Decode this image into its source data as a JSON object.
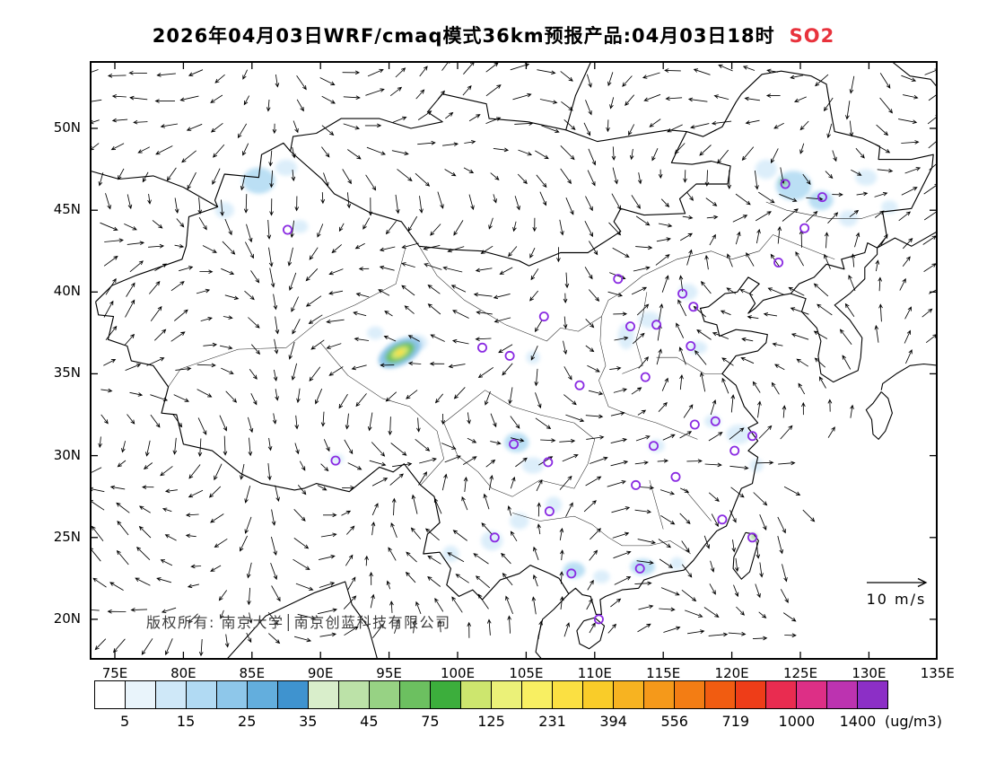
{
  "title": {
    "text": "2026年04月03日WRF/cmaq模式36km预报产品:04月03日18时",
    "pollutant": "SO2",
    "pollutant_color": "#e8323c"
  },
  "axes": {
    "lat": [
      {
        "label": "50N",
        "value": 50
      },
      {
        "label": "45N",
        "value": 45
      },
      {
        "label": "40N",
        "value": 40
      },
      {
        "label": "35N",
        "value": 35
      },
      {
        "label": "30N",
        "value": 30
      },
      {
        "label": "25N",
        "value": 25
      },
      {
        "label": "20N",
        "value": 20
      }
    ],
    "lon": [
      {
        "label": "75E",
        "value": 75
      },
      {
        "label": "80E",
        "value": 80
      },
      {
        "label": "85E",
        "value": 85
      },
      {
        "label": "90E",
        "value": 90
      },
      {
        "label": "95E",
        "value": 95
      },
      {
        "label": "100E",
        "value": 100
      },
      {
        "label": "105E",
        "value": 105
      },
      {
        "label": "110E",
        "value": 110
      },
      {
        "label": "115E",
        "value": 115
      },
      {
        "label": "120E",
        "value": 120
      },
      {
        "label": "125E",
        "value": 125
      },
      {
        "label": "130E",
        "value": 130
      },
      {
        "label": "135E",
        "value": 135
      }
    ]
  },
  "map": {
    "copyright": "版权所有: 南京大学│南京创蓝科技有限公司",
    "wind_scale_label": "10 m/s"
  },
  "colorbar": {
    "unit": "(ug/m3)",
    "labels": [
      "5",
      "15",
      "25",
      "35",
      "45",
      "75",
      "125",
      "231",
      "394",
      "556",
      "719",
      "1000",
      "1400"
    ],
    "colors": [
      "#ffffff",
      "#e9f4fb",
      "#cfe8f8",
      "#b1daf3",
      "#8ec7ea",
      "#63aedd",
      "#3f93cf",
      "#d9eecb",
      "#bce2a8",
      "#97d284",
      "#6cc060",
      "#3cae3c",
      "#cde66e",
      "#ebf178",
      "#f8ef62",
      "#fbe042",
      "#f9cc29",
      "#f7b321",
      "#f5991a",
      "#f37d14",
      "#f15c11",
      "#ee3d18",
      "#e92c50",
      "#dd2f86",
      "#bc33b0",
      "#8c2fc6"
    ]
  },
  "chart_data": {
    "type": "map",
    "wind_reference_mps": 10,
    "station_marker_color": "#8a2be2",
    "patch_colors": {
      "1": "#d8ecf9",
      "2": "#b4dbf3",
      "3": "#8cc4e8",
      "4": "#74c26a"
    },
    "stations_lonlat": [
      [
        87.6,
        43.8
      ],
      [
        123.9,
        46.6
      ],
      [
        126.6,
        45.8
      ],
      [
        125.3,
        43.9
      ],
      [
        123.4,
        41.8
      ],
      [
        111.7,
        40.8
      ],
      [
        116.4,
        39.9
      ],
      [
        117.2,
        39.1
      ],
      [
        114.5,
        38.0
      ],
      [
        112.6,
        37.9
      ],
      [
        117.0,
        36.7
      ],
      [
        113.7,
        34.8
      ],
      [
        108.9,
        34.3
      ],
      [
        106.3,
        38.5
      ],
      [
        103.8,
        36.1
      ],
      [
        101.8,
        36.6
      ],
      [
        117.3,
        31.9
      ],
      [
        118.8,
        32.1
      ],
      [
        121.5,
        31.2
      ],
      [
        120.2,
        30.3
      ],
      [
        114.3,
        30.6
      ],
      [
        104.1,
        30.7
      ],
      [
        106.6,
        29.6
      ],
      [
        91.1,
        29.7
      ],
      [
        113.0,
        28.2
      ],
      [
        115.9,
        28.7
      ],
      [
        106.7,
        26.6
      ],
      [
        102.7,
        25.0
      ],
      [
        119.3,
        26.1
      ],
      [
        121.5,
        25.0
      ],
      [
        113.3,
        23.1
      ],
      [
        108.3,
        22.8
      ],
      [
        110.3,
        20.0
      ]
    ],
    "so2_patches": [
      [
        85.5,
        46.8,
        1.2,
        0.8,
        2
      ],
      [
        87.5,
        47.6,
        0.8,
        0.5,
        1
      ],
      [
        83.0,
        45.0,
        0.7,
        0.5,
        1
      ],
      [
        88.5,
        44.0,
        0.6,
        0.4,
        1
      ],
      [
        124.5,
        46.5,
        1.3,
        0.9,
        2
      ],
      [
        126.5,
        45.6,
        0.9,
        0.6,
        2
      ],
      [
        122.5,
        47.5,
        0.8,
        0.6,
        1
      ],
      [
        128.5,
        44.5,
        0.7,
        0.5,
        1
      ],
      [
        129.8,
        47.0,
        0.8,
        0.5,
        1
      ],
      [
        131.5,
        45.2,
        0.6,
        0.4,
        1
      ],
      [
        116.8,
        40.0,
        0.7,
        0.5,
        1
      ],
      [
        114.0,
        38.3,
        0.8,
        0.5,
        1
      ],
      [
        112.3,
        37.3,
        0.6,
        0.8,
        1
      ],
      [
        117.5,
        36.6,
        0.7,
        0.4,
        1
      ],
      [
        105.5,
        36.0,
        0.5,
        0.4,
        1
      ],
      [
        104.3,
        30.8,
        0.9,
        0.6,
        2
      ],
      [
        105.5,
        29.4,
        0.8,
        0.5,
        1
      ],
      [
        107.0,
        27.0,
        0.6,
        0.5,
        1
      ],
      [
        104.5,
        26.0,
        0.7,
        0.5,
        1
      ],
      [
        102.5,
        24.8,
        0.8,
        0.6,
        1
      ],
      [
        99.5,
        24.0,
        0.6,
        0.5,
        1
      ],
      [
        108.5,
        23.0,
        0.8,
        0.5,
        2
      ],
      [
        110.5,
        22.6,
        0.6,
        0.4,
        1
      ],
      [
        113.5,
        23.2,
        0.9,
        0.5,
        2
      ],
      [
        116.0,
        23.4,
        0.5,
        0.4,
        1
      ],
      [
        120.5,
        31.3,
        0.9,
        0.6,
        1
      ],
      [
        118.6,
        32.1,
        0.6,
        0.4,
        1
      ],
      [
        114.5,
        30.6,
        0.6,
        0.4,
        1
      ],
      [
        121.8,
        29.4,
        0.5,
        0.4,
        1
      ],
      [
        91.2,
        29.8,
        0.5,
        0.3,
        1
      ],
      [
        97.0,
        36.9,
        0.8,
        0.5,
        1
      ],
      [
        94.0,
        37.5,
        0.6,
        0.4,
        1
      ],
      [
        123.8,
        46.7,
        0.3,
        0.2,
        4
      ],
      [
        121.6,
        25.05,
        0.22,
        0.16,
        4
      ]
    ],
    "hotspot": {
      "lon": 95.8,
      "lat": 36.3,
      "rotation": -28,
      "rings": [
        {
          "rx": 1.7,
          "ry": 0.75,
          "color": "#8cc4e8"
        },
        {
          "rx": 1.15,
          "ry": 0.5,
          "color": "#6cc060"
        },
        {
          "rx": 0.7,
          "ry": 0.3,
          "color": "#cde66e"
        },
        {
          "rx": 0.35,
          "ry": 0.16,
          "color": "#fbe042"
        }
      ]
    }
  }
}
